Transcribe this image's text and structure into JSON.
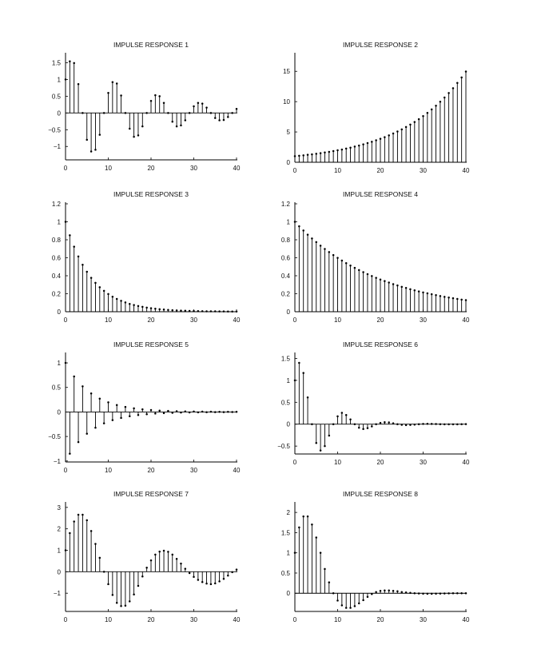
{
  "chart_data": [
    {
      "type": "stem",
      "title": "IMPULSE RESPONSE 1",
      "x_range": [
        0,
        40
      ],
      "ylim": [
        -1.4,
        1.75
      ],
      "xticks": [
        0,
        10,
        20,
        30,
        40
      ],
      "xtick_labels": [
        "0",
        "10",
        "20",
        "30",
        "40"
      ],
      "yticks": [
        -1,
        -0.5,
        0,
        0.5,
        1,
        1.5
      ],
      "ytick_labels": [
        "−1",
        "−0.5",
        "0",
        "0.5",
        "1",
        "1.5"
      ],
      "values": [
        1,
        1.54,
        1.49,
        0.86,
        0,
        -0.8,
        -1.15,
        -1.1,
        -0.65,
        0,
        0.6,
        0.92,
        0.88,
        0.52,
        0,
        -0.47,
        -0.71,
        -0.67,
        -0.4,
        0,
        0.36,
        0.53,
        0.5,
        0.3,
        0,
        -0.26,
        -0.4,
        -0.37,
        -0.22,
        0,
        0.2,
        0.3,
        0.28,
        0.16,
        0,
        -0.15,
        -0.22,
        -0.21,
        -0.12,
        0,
        0.12
      ]
    },
    {
      "type": "stem",
      "title": "IMPULSE RESPONSE 2",
      "x_range": [
        0,
        40
      ],
      "ylim": [
        0,
        17.8
      ],
      "xticks": [
        0,
        10,
        20,
        30,
        40
      ],
      "xtick_labels": [
        "0",
        "10",
        "20",
        "30",
        "40"
      ],
      "yticks": [
        0,
        5,
        10,
        15
      ],
      "ytick_labels": [
        "0",
        "5",
        "10",
        "15"
      ],
      "values": [
        1,
        1.07,
        1.14,
        1.23,
        1.31,
        1.4,
        1.5,
        1.61,
        1.72,
        1.84,
        1.97,
        2.1,
        2.25,
        2.41,
        2.58,
        2.76,
        2.95,
        3.16,
        3.38,
        3.62,
        3.87,
        4.14,
        4.43,
        4.74,
        5.07,
        5.43,
        5.81,
        6.21,
        6.65,
        7.11,
        7.61,
        8.15,
        8.72,
        9.33,
        9.98,
        10.68,
        11.42,
        12.22,
        13.08,
        14,
        14.97
      ]
    },
    {
      "type": "stem",
      "title": "IMPULSE RESPONSE 3",
      "x_range": [
        0,
        40
      ],
      "ylim": [
        0,
        1.2
      ],
      "xticks": [
        0,
        10,
        20,
        30,
        40
      ],
      "xtick_labels": [
        "0",
        "10",
        "20",
        "30",
        "40"
      ],
      "yticks": [
        0,
        0.2,
        0.4,
        0.6,
        0.8,
        1,
        1.2
      ],
      "ytick_labels": [
        "0",
        "0.2",
        "0.4",
        "0.6",
        "0.8",
        "1",
        "1.2"
      ],
      "values": [
        1,
        0.85,
        0.723,
        0.614,
        0.522,
        0.444,
        0.377,
        0.321,
        0.272,
        0.232,
        0.197,
        0.167,
        0.142,
        0.121,
        0.103,
        0.087,
        0.074,
        0.063,
        0.054,
        0.046,
        0.039,
        0.033,
        0.028,
        0.024,
        0.02,
        0.017,
        0.015,
        0.012,
        0.011,
        0.009,
        0.008,
        0.007,
        0.006,
        0.005,
        0.004,
        0.004,
        0.003,
        0.003,
        0.002,
        0.002,
        0.002
      ]
    },
    {
      "type": "stem",
      "title": "IMPULSE RESPONSE 4",
      "x_range": [
        0,
        40
      ],
      "ylim": [
        0,
        1.2
      ],
      "xticks": [
        0,
        10,
        20,
        30,
        40
      ],
      "xtick_labels": [
        "0",
        "10",
        "20",
        "30",
        "40"
      ],
      "yticks": [
        0,
        0.2,
        0.4,
        0.6,
        0.8,
        1,
        1.2
      ],
      "ytick_labels": [
        "0",
        "0.2",
        "0.4",
        "0.6",
        "0.8",
        "1",
        "1.2"
      ],
      "values": [
        1,
        0.95,
        0.903,
        0.857,
        0.815,
        0.774,
        0.735,
        0.698,
        0.663,
        0.63,
        0.599,
        0.569,
        0.54,
        0.513,
        0.488,
        0.463,
        0.44,
        0.418,
        0.397,
        0.377,
        0.358,
        0.341,
        0.324,
        0.307,
        0.292,
        0.277,
        0.264,
        0.25,
        0.238,
        0.226,
        0.215,
        0.204,
        0.194,
        0.184,
        0.175,
        0.166,
        0.158,
        0.15,
        0.142,
        0.135,
        0.129
      ]
    },
    {
      "type": "stem",
      "title": "IMPULSE RESPONSE 5",
      "x_range": [
        0,
        40
      ],
      "ylim": [
        -1.02,
        1.18
      ],
      "xticks": [
        0,
        10,
        20,
        30,
        40
      ],
      "xtick_labels": [
        "0",
        "10",
        "20",
        "30",
        "40"
      ],
      "yticks": [
        -1,
        -0.5,
        0,
        0.5,
        1
      ],
      "ytick_labels": [
        "−1",
        "−0.5",
        "0",
        "0.5",
        "1"
      ],
      "values": [
        1,
        -0.85,
        0.723,
        -0.614,
        0.522,
        -0.444,
        0.377,
        -0.321,
        0.272,
        -0.232,
        0.197,
        -0.167,
        0.142,
        -0.121,
        0.103,
        -0.087,
        0.074,
        -0.063,
        0.054,
        -0.046,
        0.039,
        -0.033,
        0.028,
        -0.024,
        0.02,
        -0.017,
        0.015,
        -0.012,
        0.011,
        -0.009,
        0.008,
        -0.007,
        0.006,
        -0.005,
        0.004,
        -0.004,
        0.003,
        -0.003,
        0.002,
        -0.002,
        0.002
      ]
    },
    {
      "type": "stem",
      "title": "IMPULSE RESPONSE 6",
      "x_range": [
        0,
        40
      ],
      "ylim": [
        -0.68,
        1.6
      ],
      "xticks": [
        0,
        10,
        20,
        30,
        40
      ],
      "xtick_labels": [
        "0",
        "10",
        "20",
        "30",
        "40"
      ],
      "yticks": [
        -0.5,
        0,
        0.5,
        1,
        1.5
      ],
      "ytick_labels": [
        "−0.5",
        "0",
        "0.5",
        "1",
        "1.5"
      ],
      "values": [
        1,
        1.4,
        1.17,
        0.61,
        0,
        -0.43,
        -0.6,
        -0.5,
        -0.26,
        0,
        0.18,
        0.26,
        0.21,
        0.11,
        0,
        -0.08,
        -0.11,
        -0.09,
        -0.05,
        0,
        0.03,
        0.045,
        0.04,
        0.02,
        0,
        -0.015,
        -0.02,
        -0.017,
        -0.009,
        0,
        0.006,
        0.008,
        0.007,
        0.004,
        0,
        -0.002,
        -0.003,
        -0.003,
        -0.002,
        0,
        0.001
      ]
    },
    {
      "type": "stem",
      "title": "IMPULSE RESPONSE 7",
      "x_range": [
        0,
        40
      ],
      "ylim": [
        -1.85,
        3.18
      ],
      "xticks": [
        0,
        10,
        20,
        30,
        40
      ],
      "xtick_labels": [
        "0",
        "10",
        "20",
        "30",
        "40"
      ],
      "yticks": [
        -1,
        0,
        1,
        2,
        3
      ],
      "ytick_labels": [
        "−1",
        "0",
        "1",
        "2",
        "3"
      ],
      "values": [
        1,
        1.8,
        2.34,
        2.66,
        2.66,
        2.4,
        1.9,
        1.3,
        0.65,
        0,
        -0.58,
        -1.08,
        -1.45,
        -1.6,
        -1.58,
        -1.38,
        -1.06,
        -0.66,
        -0.22,
        0.19,
        0.53,
        0.8,
        0.94,
        0.98,
        0.93,
        0.8,
        0.6,
        0.38,
        0.14,
        -0.06,
        -0.24,
        -0.38,
        -0.48,
        -0.55,
        -0.58,
        -0.54,
        -0.45,
        -0.33,
        -0.18,
        -0.02,
        0.1
      ]
    },
    {
      "type": "stem",
      "title": "IMPULSE RESPONSE 8",
      "x_range": [
        0,
        40
      ],
      "ylim": [
        -0.45,
        2.22
      ],
      "xticks": [
        0,
        10,
        20,
        30,
        40
      ],
      "xtick_labels": [
        "0",
        "10",
        "20",
        "30",
        "40"
      ],
      "yticks": [
        0,
        0.5,
        1,
        1.5,
        2
      ],
      "ytick_labels": [
        "0",
        "0.5",
        "1",
        "1.5",
        "2"
      ],
      "values": [
        1,
        1.63,
        1.9,
        1.9,
        1.7,
        1.38,
        1.0,
        0.6,
        0.27,
        0,
        -0.18,
        -0.3,
        -0.36,
        -0.36,
        -0.32,
        -0.25,
        -0.17,
        -0.09,
        -0.02,
        0.03,
        0.06,
        0.07,
        0.07,
        0.06,
        0.05,
        0.03,
        0.02,
        0.01,
        0,
        -0.005,
        -0.01,
        -0.012,
        -0.012,
        -0.01,
        -0.008,
        -0.005,
        -0.003,
        -0.001,
        0,
        0.001,
        0.001
      ]
    }
  ]
}
